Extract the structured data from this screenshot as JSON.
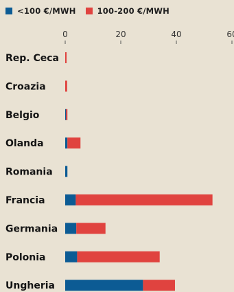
{
  "legend": {
    "items": [
      {
        "label": "<100 €/MWH",
        "color": "#0c5b94"
      },
      {
        "label": "100-200 €/MWH",
        "color": "#e0433f"
      }
    ]
  },
  "chart_data": {
    "type": "bar",
    "orientation": "horizontal",
    "stacked": true,
    "categories": [
      "Rep. Ceca",
      "Croazia",
      "Belgio",
      "Olanda",
      "Romania",
      "Francia",
      "Germania",
      "Polonia",
      "Ungheria"
    ],
    "series": [
      {
        "name": "<100 €/MWH",
        "color": "#0c5b94",
        "values": [
          0,
          0,
          0.3,
          0.8,
          0.8,
          3.8,
          4,
          4.3,
          28
        ]
      },
      {
        "name": "100-200 €/MWH",
        "color": "#e0433f",
        "values": [
          0.5,
          0.7,
          0.5,
          4.7,
          0,
          49.2,
          10.5,
          29.7,
          11.5
        ]
      }
    ],
    "xlim": [
      0,
      60
    ],
    "xticks": [
      0,
      20,
      40,
      60
    ],
    "title": "",
    "xlabel": "",
    "ylabel": "",
    "grid": false,
    "legend_position": "top-left"
  }
}
